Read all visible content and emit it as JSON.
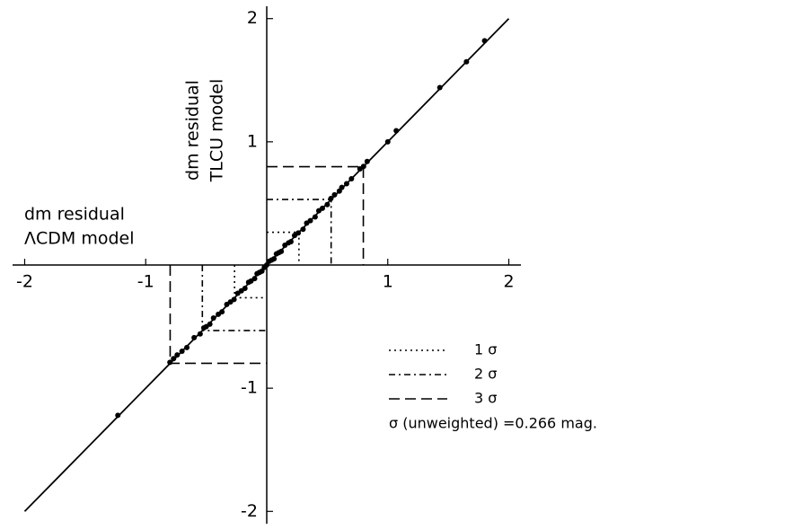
{
  "chart_data": {
    "type": "scatter",
    "x_label": [
      "dm residual",
      "ΛCDM model"
    ],
    "y_label": [
      "dm residual",
      "TLCU model"
    ],
    "xlim": [
      -2.1,
      2.1
    ],
    "ylim": [
      -2.1,
      2.1
    ],
    "xticks": [
      -2,
      -1,
      1,
      2
    ],
    "yticks": [
      -2,
      -1,
      1,
      2
    ],
    "x": [
      -1.23,
      -0.8,
      -0.77,
      -0.74,
      -0.7,
      -0.66,
      -0.6,
      -0.55,
      -0.52,
      -0.5,
      -0.47,
      -0.44,
      -0.4,
      -0.37,
      -0.33,
      -0.3,
      -0.27,
      -0.24,
      -0.21,
      -0.18,
      -0.15,
      -0.13,
      -0.1,
      -0.08,
      -0.06,
      -0.04,
      -0.02,
      0,
      0.02,
      0.04,
      0.06,
      0.08,
      0.1,
      0.12,
      0.15,
      0.18,
      0.2,
      0.23,
      0.26,
      0.3,
      0.33,
      0.36,
      0.4,
      0.43,
      0.46,
      0.5,
      0.53,
      0.56,
      0.6,
      0.62,
      0.66,
      0.7,
      0.77,
      0.8,
      0.83,
      1.0,
      1.07,
      1.43,
      1.65,
      1.8
    ],
    "values": [
      -1.22,
      -0.79,
      -0.76,
      -0.73,
      -0.7,
      -0.67,
      -0.59,
      -0.56,
      -0.51,
      -0.5,
      -0.48,
      -0.43,
      -0.4,
      -0.38,
      -0.32,
      -0.3,
      -0.28,
      -0.23,
      -0.21,
      -0.19,
      -0.14,
      -0.13,
      -0.11,
      -0.07,
      -0.06,
      -0.05,
      -0.02,
      0,
      0.03,
      0.04,
      0.05,
      0.09,
      0.1,
      0.11,
      0.16,
      0.18,
      0.19,
      0.24,
      0.26,
      0.29,
      0.34,
      0.36,
      0.39,
      0.44,
      0.46,
      0.49,
      0.54,
      0.57,
      0.6,
      0.63,
      0.66,
      0.7,
      0.78,
      0.8,
      0.84,
      1.0,
      1.09,
      1.44,
      1.65,
      1.82
    ],
    "color": "#000000",
    "fit_line": {
      "x": [
        -2,
        2
      ],
      "y": [
        -2,
        2
      ]
    },
    "sigma_levels": [
      {
        "name": "1 σ",
        "value": 0.266,
        "style": "dotted"
      },
      {
        "name": "2 σ",
        "value": 0.532,
        "style": "dashdot"
      },
      {
        "name": "3 σ",
        "value": 0.798,
        "style": "dashed"
      }
    ],
    "annotation": "σ (unweighted) =0.266 mag."
  }
}
